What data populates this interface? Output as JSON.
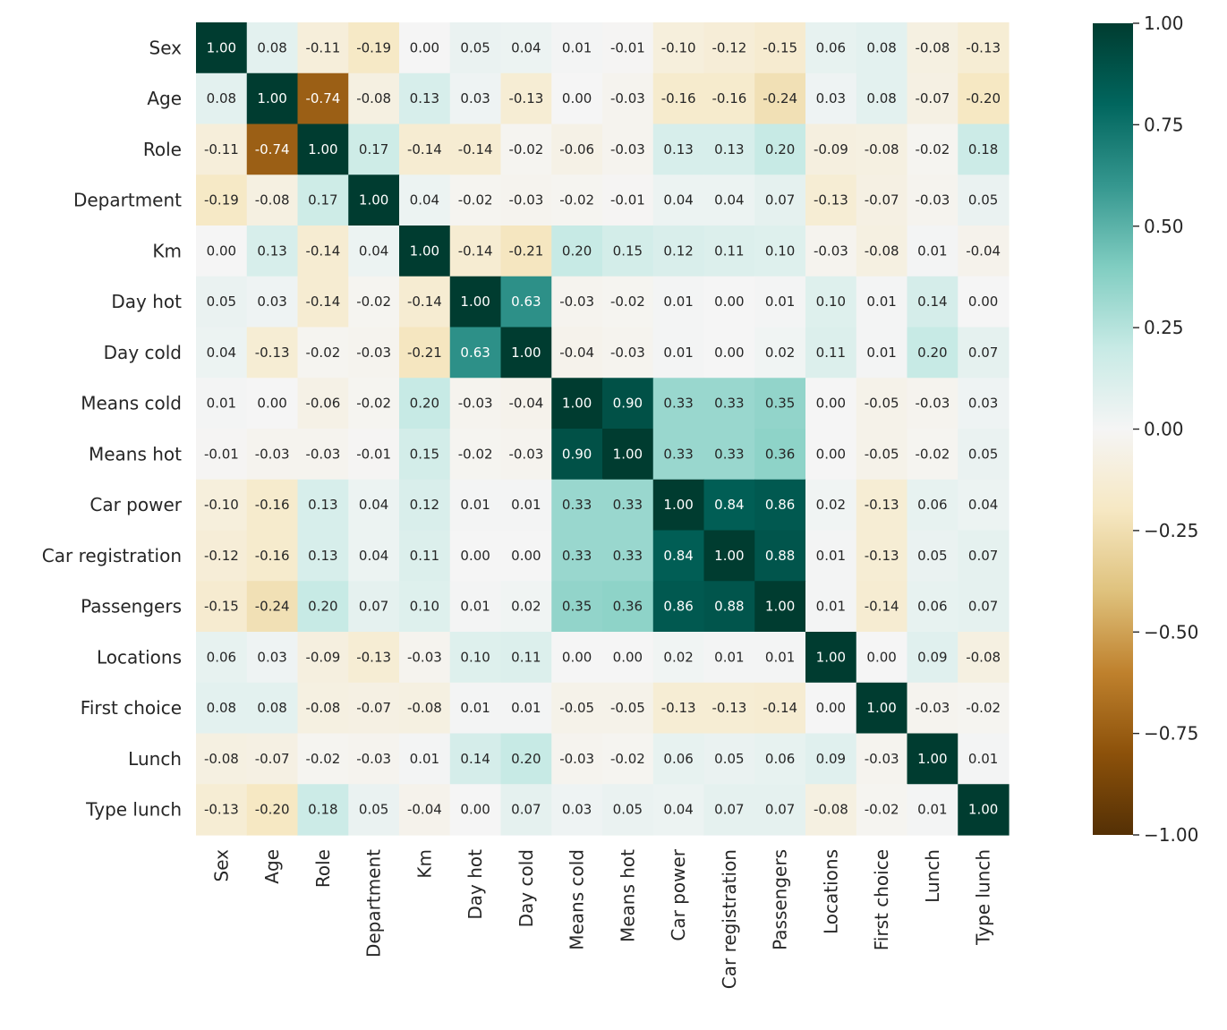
{
  "chart_data": {
    "type": "heatmap",
    "title": "",
    "xlabel": "",
    "ylabel": "",
    "variables": [
      "Sex",
      "Age",
      "Role",
      "Department",
      "Km",
      "Day hot",
      "Day cold",
      "Means cold",
      "Means hot",
      "Car power",
      "Car registration",
      "Passengers",
      "Locations",
      "First choice",
      "Lunch",
      "Type lunch"
    ],
    "values": [
      [
        1.0,
        0.08,
        -0.11,
        -0.19,
        0.0,
        0.05,
        0.04,
        0.01,
        -0.01,
        -0.1,
        -0.12,
        -0.15,
        0.06,
        0.08,
        -0.08,
        -0.13
      ],
      [
        0.08,
        1.0,
        -0.74,
        -0.08,
        0.13,
        0.03,
        -0.13,
        0.0,
        -0.03,
        -0.16,
        -0.16,
        -0.24,
        0.03,
        0.08,
        -0.07,
        -0.2
      ],
      [
        -0.11,
        -0.74,
        1.0,
        0.17,
        -0.14,
        -0.14,
        -0.02,
        -0.06,
        -0.03,
        0.13,
        0.13,
        0.2,
        -0.09,
        -0.08,
        -0.02,
        0.18
      ],
      [
        -0.19,
        -0.08,
        0.17,
        1.0,
        0.04,
        -0.02,
        -0.03,
        -0.02,
        -0.01,
        0.04,
        0.04,
        0.07,
        -0.13,
        -0.07,
        -0.03,
        0.05
      ],
      [
        0.0,
        0.13,
        -0.14,
        0.04,
        1.0,
        -0.14,
        -0.21,
        0.2,
        0.15,
        0.12,
        0.11,
        0.1,
        -0.03,
        -0.08,
        0.01,
        -0.04
      ],
      [
        0.05,
        0.03,
        -0.14,
        -0.02,
        -0.14,
        1.0,
        0.63,
        -0.03,
        -0.02,
        0.01,
        0.0,
        0.01,
        0.1,
        0.01,
        0.14,
        -0.0
      ],
      [
        0.04,
        -0.13,
        -0.02,
        -0.03,
        -0.21,
        0.63,
        1.0,
        -0.04,
        -0.03,
        0.01,
        0.0,
        0.02,
        0.11,
        0.01,
        0.2,
        0.07
      ],
      [
        0.01,
        0.0,
        -0.06,
        -0.02,
        0.2,
        -0.03,
        -0.04,
        1.0,
        0.9,
        0.33,
        0.33,
        0.35,
        -0.0,
        -0.05,
        -0.03,
        0.03
      ],
      [
        -0.01,
        -0.03,
        -0.03,
        -0.01,
        0.15,
        -0.02,
        -0.03,
        0.9,
        1.0,
        0.33,
        0.33,
        0.36,
        0.0,
        -0.05,
        -0.02,
        0.05
      ],
      [
        -0.1,
        -0.16,
        0.13,
        0.04,
        0.12,
        0.01,
        0.01,
        0.33,
        0.33,
        1.0,
        0.84,
        0.86,
        0.02,
        -0.13,
        0.06,
        0.04
      ],
      [
        -0.12,
        -0.16,
        0.13,
        0.04,
        0.11,
        0.0,
        0.0,
        0.33,
        0.33,
        0.84,
        1.0,
        0.88,
        0.01,
        -0.13,
        0.05,
        0.07
      ],
      [
        -0.15,
        -0.24,
        0.2,
        0.07,
        0.1,
        0.01,
        0.02,
        0.35,
        0.36,
        0.86,
        0.88,
        1.0,
        0.01,
        -0.14,
        0.06,
        0.07
      ],
      [
        0.06,
        0.03,
        -0.09,
        -0.13,
        -0.03,
        0.1,
        0.11,
        -0.0,
        0.0,
        0.02,
        0.01,
        0.01,
        1.0,
        -0.0,
        0.09,
        -0.08
      ],
      [
        0.08,
        0.08,
        -0.08,
        -0.07,
        -0.08,
        0.01,
        0.01,
        -0.05,
        -0.05,
        -0.13,
        -0.13,
        -0.14,
        -0.0,
        1.0,
        -0.03,
        -0.02
      ],
      [
        -0.08,
        -0.07,
        -0.02,
        -0.03,
        0.01,
        0.14,
        0.2,
        -0.03,
        -0.02,
        0.06,
        0.05,
        0.06,
        0.09,
        -0.03,
        1.0,
        0.01
      ],
      [
        -0.13,
        -0.2,
        0.18,
        0.05,
        -0.04,
        -0.0,
        0.07,
        0.03,
        0.05,
        0.04,
        0.07,
        0.07,
        -0.08,
        -0.02,
        0.01,
        1.0
      ]
    ],
    "colorbar": {
      "range": [
        -1.0,
        1.0
      ],
      "ticks": [
        1.0,
        0.75,
        0.5,
        0.25,
        0.0,
        -0.25,
        -0.5,
        -0.75,
        -1.0
      ],
      "tick_labels": [
        "1.00",
        "0.75",
        "0.50",
        "0.25",
        "0.00",
        "−0.25",
        "−0.50",
        "−0.75",
        "−1.00"
      ],
      "colormap": "BrBG",
      "colormap_stops": [
        "#543005",
        "#8c510a",
        "#bf812d",
        "#dfc27d",
        "#f6e8c3",
        "#f5f5f5",
        "#c7eae5",
        "#80cdc1",
        "#35978f",
        "#01665e",
        "#003c30"
      ]
    }
  }
}
